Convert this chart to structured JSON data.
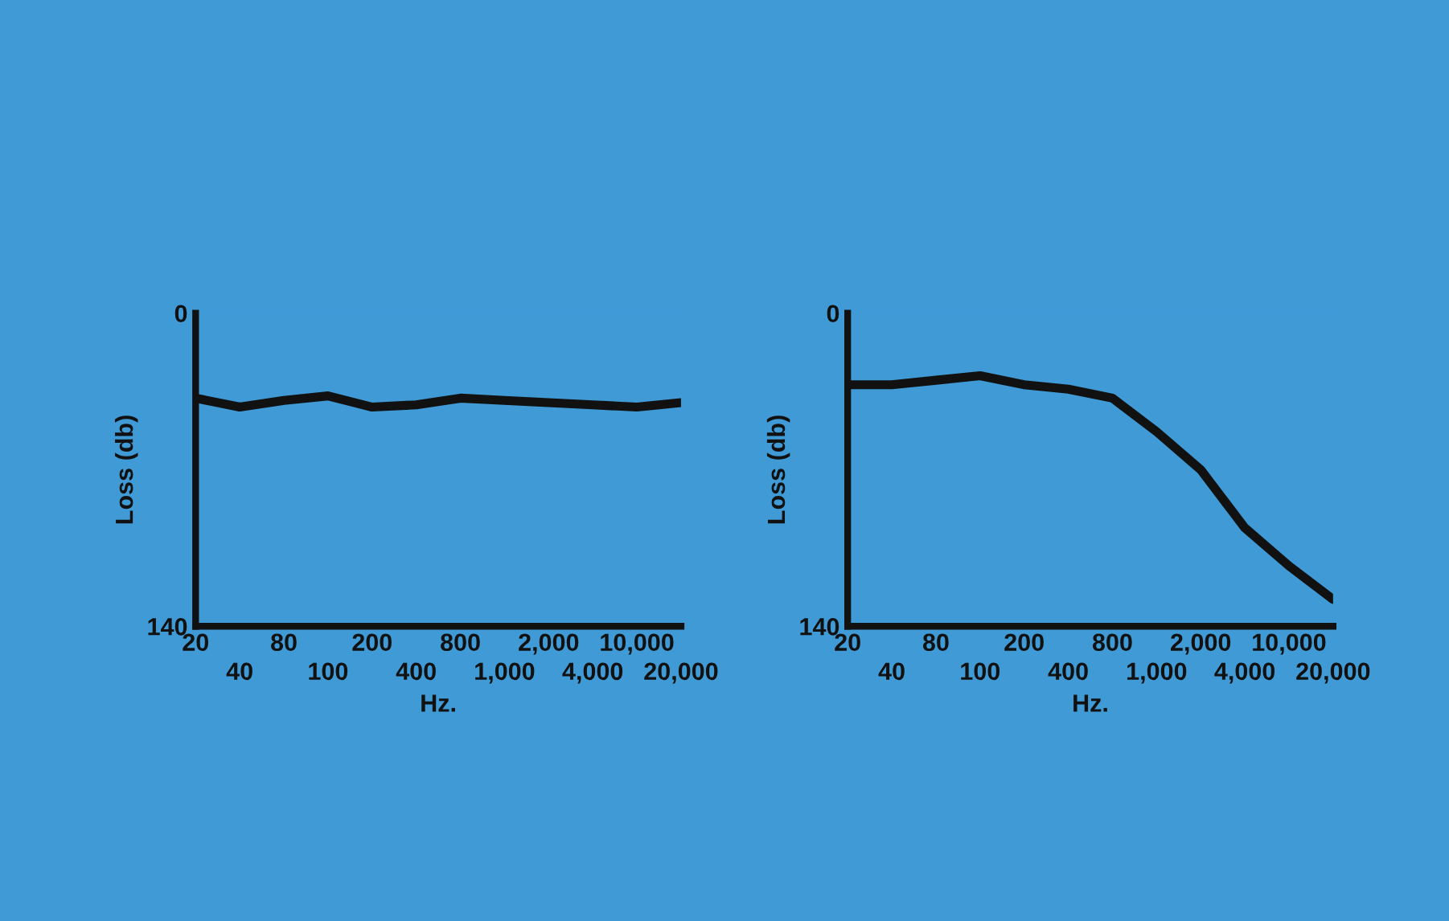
{
  "chart_data": [
    {
      "type": "line",
      "xlabel": "Hz.",
      "ylabel": "Loss (db)",
      "categories": [
        "20",
        "40",
        "80",
        "100",
        "200",
        "400",
        "800",
        "1,000",
        "2,000",
        "4,000",
        "10,000",
        "20,000"
      ],
      "ylim": [
        140,
        0
      ],
      "yticks": [
        0,
        140
      ],
      "series": [
        {
          "color": "#111111",
          "values": [
            38,
            42,
            39,
            37,
            42,
            41,
            38,
            39,
            40,
            41,
            42,
            40
          ]
        }
      ]
    },
    {
      "type": "line",
      "xlabel": "Hz.",
      "ylabel": "Loss (db)",
      "categories": [
        "20",
        "40",
        "80",
        "100",
        "200",
        "400",
        "800",
        "1,000",
        "2,000",
        "4,000",
        "10,000",
        "20,000"
      ],
      "ylim": [
        140,
        0
      ],
      "yticks": [
        0,
        140
      ],
      "series": [
        {
          "color": "#111111",
          "values": [
            32,
            32,
            30,
            28,
            32,
            34,
            38,
            53,
            70,
            96,
            113,
            128
          ]
        }
      ]
    }
  ]
}
